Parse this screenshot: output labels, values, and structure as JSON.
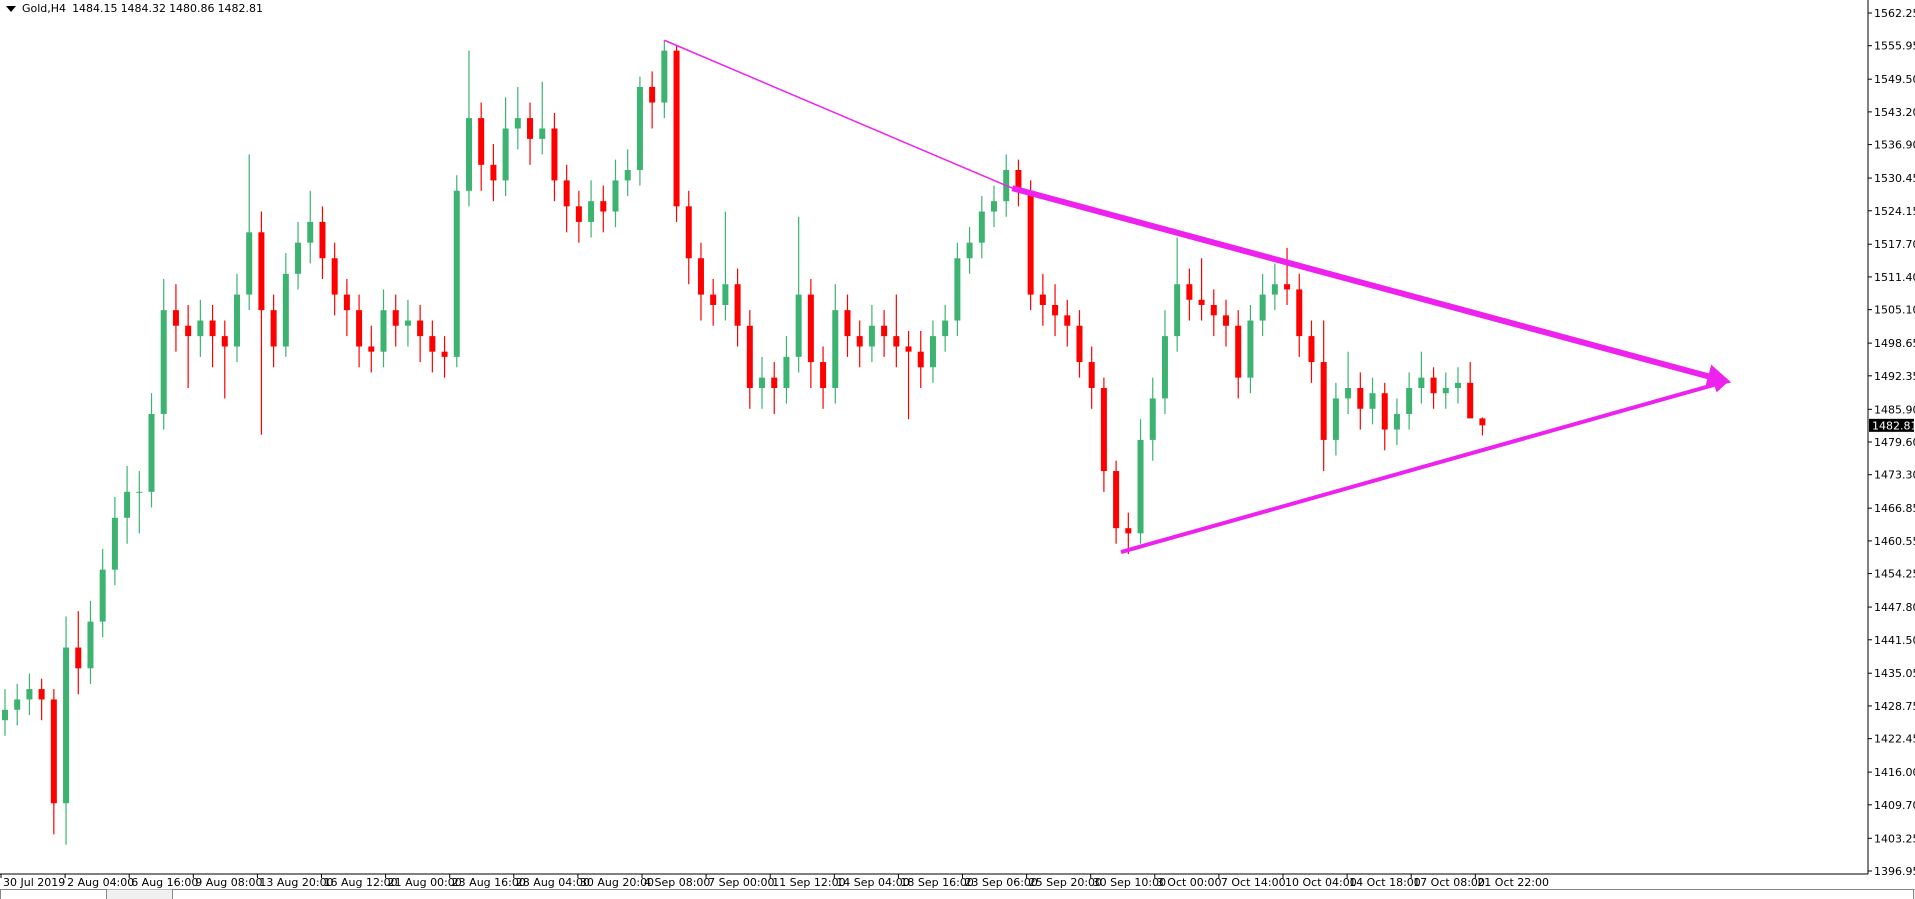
{
  "header": {
    "symbol": "Gold,H4",
    "open": "1484.15",
    "high": "1484.32",
    "low": "1480.86",
    "close": "1482.81",
    "menu_icon": "triangle-down-icon"
  },
  "colors": {
    "bull": "#3cb371",
    "bear": "#ff0000",
    "trendline": "#ee22ee",
    "axis": "#000000",
    "price_label_bg": "#000000"
  },
  "chart_data": {
    "type": "candlestick",
    "title": "",
    "ylim": [
      1396.95,
      1562.25
    ],
    "grid": false,
    "y_ticks": [
      "1562.25",
      "1555.95",
      "1549.50",
      "1543.20",
      "1536.90",
      "1530.45",
      "1524.15",
      "1517.70",
      "1511.40",
      "1505.10",
      "1498.65",
      "1492.35",
      "1485.90",
      "1479.60",
      "1473.30",
      "1466.85",
      "1460.55",
      "1454.25",
      "1447.80",
      "1441.50",
      "1435.05",
      "1428.75",
      "1422.45",
      "1416.00",
      "1409.70",
      "1403.25",
      "1396.95"
    ],
    "x_ticks": [
      "30 Jul 2019",
      "2 Aug 04:00",
      "6 Aug 16:00",
      "9 Aug 08:00",
      "13 Aug 20:00",
      "16 Aug 12:00",
      "21 Aug 00:00",
      "23 Aug 16:00",
      "28 Aug 04:00",
      "30 Aug 20:00",
      "4 Sep 08:00",
      "7 Sep 00:00",
      "11 Sep 12:00",
      "14 Sep 04:00",
      "18 Sep 16:00",
      "23 Sep 06:00",
      "25 Sep 20:00",
      "30 Sep 10:00",
      "3 Oct 00:00",
      "7 Oct 14:00",
      "10 Oct 04:00",
      "14 Oct 18:00",
      "17 Oct 08:00",
      "21 Oct 22:00"
    ],
    "current_price": "1482.81",
    "candles_ohlc": [
      [
        1426,
        1432,
        1423,
        1428
      ],
      [
        1428,
        1433,
        1425,
        1430
      ],
      [
        1430,
        1435,
        1427,
        1432
      ],
      [
        1432,
        1434,
        1426,
        1430
      ],
      [
        1430,
        1432,
        1404,
        1410
      ],
      [
        1410,
        1446,
        1402,
        1440
      ],
      [
        1440,
        1447,
        1431,
        1436
      ],
      [
        1436,
        1449,
        1433,
        1445
      ],
      [
        1445,
        1459,
        1442,
        1455
      ],
      [
        1455,
        1469,
        1452,
        1465
      ],
      [
        1465,
        1475,
        1460,
        1470
      ],
      [
        1470,
        1474,
        1462,
        1470
      ],
      [
        1470,
        1489,
        1467,
        1485
      ],
      [
        1485,
        1511,
        1482,
        1505
      ],
      [
        1505,
        1510,
        1497,
        1502
      ],
      [
        1502,
        1506,
        1490,
        1500
      ],
      [
        1500,
        1507,
        1496,
        1503
      ],
      [
        1503,
        1506,
        1494,
        1500
      ],
      [
        1500,
        1503,
        1488,
        1498
      ],
      [
        1498,
        1512,
        1495,
        1508
      ],
      [
        1508,
        1535,
        1505,
        1520
      ],
      [
        1520,
        1524,
        1481,
        1505
      ],
      [
        1505,
        1508,
        1494,
        1498
      ],
      [
        1498,
        1516,
        1496,
        1512
      ],
      [
        1512,
        1522,
        1509,
        1518
      ],
      [
        1518,
        1528,
        1514,
        1522
      ],
      [
        1522,
        1525,
        1511,
        1515
      ],
      [
        1515,
        1518,
        1504,
        1508
      ],
      [
        1508,
        1511,
        1500,
        1505
      ],
      [
        1505,
        1508,
        1494,
        1498
      ],
      [
        1498,
        1502,
        1493,
        1497
      ],
      [
        1497,
        1509,
        1494,
        1505
      ],
      [
        1505,
        1508,
        1498,
        1502
      ],
      [
        1502,
        1507,
        1498,
        1503
      ],
      [
        1503,
        1506,
        1495,
        1500
      ],
      [
        1500,
        1503,
        1493,
        1497
      ],
      [
        1497,
        1500,
        1492,
        1496
      ],
      [
        1496,
        1531,
        1494,
        1528
      ],
      [
        1528,
        1555,
        1525,
        1542
      ],
      [
        1542,
        1545,
        1528,
        1533
      ],
      [
        1533,
        1537,
        1526,
        1530
      ],
      [
        1530,
        1546,
        1527,
        1540
      ],
      [
        1540,
        1548,
        1536,
        1542
      ],
      [
        1542,
        1545,
        1533,
        1538
      ],
      [
        1538,
        1549,
        1535,
        1540
      ],
      [
        1540,
        1543,
        1526,
        1530
      ],
      [
        1530,
        1533,
        1520,
        1525
      ],
      [
        1525,
        1528,
        1518,
        1522
      ],
      [
        1522,
        1530,
        1519,
        1526
      ],
      [
        1526,
        1529,
        1520,
        1524
      ],
      [
        1524,
        1534,
        1521,
        1530
      ],
      [
        1530,
        1536,
        1527,
        1532
      ],
      [
        1532,
        1550,
        1529,
        1548
      ],
      [
        1548,
        1551,
        1540,
        1545
      ],
      [
        1545,
        1557,
        1542,
        1555
      ],
      [
        1555,
        1556,
        1522,
        1525
      ],
      [
        1525,
        1528,
        1510,
        1515
      ],
      [
        1515,
        1518,
        1503,
        1508
      ],
      [
        1508,
        1511,
        1502,
        1506
      ],
      [
        1506,
        1524,
        1503,
        1510
      ],
      [
        1510,
        1513,
        1498,
        1502
      ],
      [
        1502,
        1505,
        1486,
        1490
      ],
      [
        1490,
        1496,
        1486,
        1492
      ],
      [
        1492,
        1495,
        1485,
        1490
      ],
      [
        1490,
        1500,
        1487,
        1496
      ],
      [
        1496,
        1523,
        1493,
        1508
      ],
      [
        1508,
        1511,
        1490,
        1495
      ],
      [
        1495,
        1498,
        1486,
        1490
      ],
      [
        1490,
        1510,
        1487,
        1505
      ],
      [
        1505,
        1508,
        1496,
        1500
      ],
      [
        1500,
        1503,
        1494,
        1498
      ],
      [
        1498,
        1506,
        1495,
        1502
      ],
      [
        1502,
        1505,
        1496,
        1500
      ],
      [
        1500,
        1508,
        1494,
        1498
      ],
      [
        1498,
        1501,
        1484,
        1497
      ],
      [
        1497,
        1501,
        1490,
        1494
      ],
      [
        1494,
        1503,
        1491,
        1500
      ],
      [
        1500,
        1506,
        1497,
        1503
      ],
      [
        1503,
        1518,
        1500,
        1515
      ],
      [
        1515,
        1521,
        1512,
        1518
      ],
      [
        1518,
        1527,
        1515,
        1524
      ],
      [
        1524,
        1529,
        1521,
        1526
      ],
      [
        1526,
        1535,
        1523,
        1532
      ],
      [
        1532,
        1534,
        1525,
        1528
      ],
      [
        1528,
        1530,
        1505,
        1508
      ],
      [
        1508,
        1512,
        1502,
        1506
      ],
      [
        1506,
        1510,
        1500,
        1504
      ],
      [
        1504,
        1507,
        1498,
        1502
      ],
      [
        1502,
        1505,
        1492,
        1495
      ],
      [
        1495,
        1498,
        1486,
        1490
      ],
      [
        1490,
        1492,
        1470,
        1474
      ],
      [
        1474,
        1476,
        1460,
        1463
      ],
      [
        1463,
        1466,
        1458,
        1462
      ],
      [
        1462,
        1484,
        1460,
        1480
      ],
      [
        1480,
        1492,
        1476,
        1488
      ],
      [
        1488,
        1505,
        1485,
        1500
      ],
      [
        1500,
        1519,
        1497,
        1510
      ],
      [
        1510,
        1513,
        1503,
        1507
      ],
      [
        1507,
        1515,
        1503,
        1506
      ],
      [
        1506,
        1509,
        1500,
        1504
      ],
      [
        1504,
        1507,
        1498,
        1502
      ],
      [
        1502,
        1505,
        1488,
        1492
      ],
      [
        1492,
        1506,
        1489,
        1503
      ],
      [
        1503,
        1512,
        1500,
        1508
      ],
      [
        1508,
        1514,
        1505,
        1510
      ],
      [
        1510,
        1517,
        1506,
        1509
      ],
      [
        1509,
        1512,
        1496,
        1500
      ],
      [
        1500,
        1503,
        1491,
        1495
      ],
      [
        1495,
        1503,
        1474,
        1480
      ],
      [
        1480,
        1491,
        1477,
        1488
      ],
      [
        1488,
        1497,
        1485,
        1490
      ],
      [
        1490,
        1493,
        1482,
        1486
      ],
      [
        1486,
        1492,
        1483,
        1489
      ],
      [
        1489,
        1491,
        1478,
        1482
      ],
      [
        1482,
        1488,
        1479,
        1485
      ],
      [
        1485,
        1493,
        1482,
        1490
      ],
      [
        1490,
        1497,
        1487,
        1492
      ],
      [
        1492,
        1494,
        1486,
        1489
      ],
      [
        1489,
        1493,
        1486,
        1490
      ],
      [
        1490,
        1494,
        1487,
        1491
      ],
      [
        1491,
        1495,
        1487,
        1484.15
      ],
      [
        1484.15,
        1484.32,
        1480.86,
        1482.81
      ]
    ],
    "trendlines": [
      {
        "from": {
          "bar": 54,
          "price": 1557
        },
        "to": {
          "bar": 82.5,
          "price": 1528.5
        },
        "weight": "thin",
        "arrow": false
      },
      {
        "from": {
          "bar": 82.5,
          "price": 1528.5
        },
        "to": {
          "bar": 141,
          "price": 1491.3
        },
        "weight": "thick",
        "arrow": true
      },
      {
        "from": {
          "bar": 91.4,
          "price": 1458.4
        },
        "to": {
          "bar": 141,
          "price": 1491.3
        },
        "weight": "medium",
        "arrow": true
      }
    ]
  }
}
